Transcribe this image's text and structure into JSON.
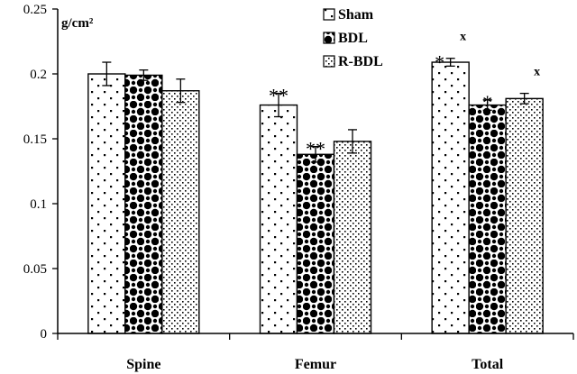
{
  "chart_data": {
    "type": "bar",
    "title": "",
    "unit_label": "g/cm²",
    "xlabel": "",
    "ylabel": "",
    "ylim": [
      0,
      0.25
    ],
    "yticks": [
      "0",
      "0.05",
      "0.1",
      "0.15",
      "0.2",
      "0.25"
    ],
    "ytick_values": [
      0,
      0.05,
      0.1,
      0.15,
      0.2,
      0.25
    ],
    "categories": [
      "Spine",
      "Femur",
      "Total"
    ],
    "series": [
      {
        "name": "Sham",
        "pattern": "sparse-dots",
        "values": [
          0.2,
          0.176,
          0.209
        ],
        "errors": [
          0.009,
          0.009,
          0.003
        ]
      },
      {
        "name": "BDL",
        "pattern": "checker-circles",
        "values": [
          0.199,
          0.138,
          0.176
        ],
        "errors": [
          0.004,
          0.006,
          0.004
        ]
      },
      {
        "name": "R-BDL",
        "pattern": "dense-dots",
        "values": [
          0.187,
          0.148,
          0.181
        ],
        "errors": [
          0.009,
          0.009,
          0.004
        ]
      }
    ],
    "annotations": [
      {
        "category": "Femur",
        "series": "Sham",
        "text": "**"
      },
      {
        "category": "Femur",
        "series": "BDL",
        "text": "**"
      },
      {
        "category": "Total",
        "series": "Sham",
        "text": "*"
      },
      {
        "category": "Total",
        "series": "Sham",
        "text": "x",
        "kind": "x"
      },
      {
        "category": "Total",
        "series": "BDL",
        "text": "*"
      },
      {
        "category": "Total",
        "series": "R-BDL",
        "text": "x",
        "kind": "x"
      }
    ],
    "legend": {
      "placement": "top-center",
      "entries": [
        "Sham",
        "BDL",
        "R-BDL"
      ]
    },
    "grid": false
  }
}
